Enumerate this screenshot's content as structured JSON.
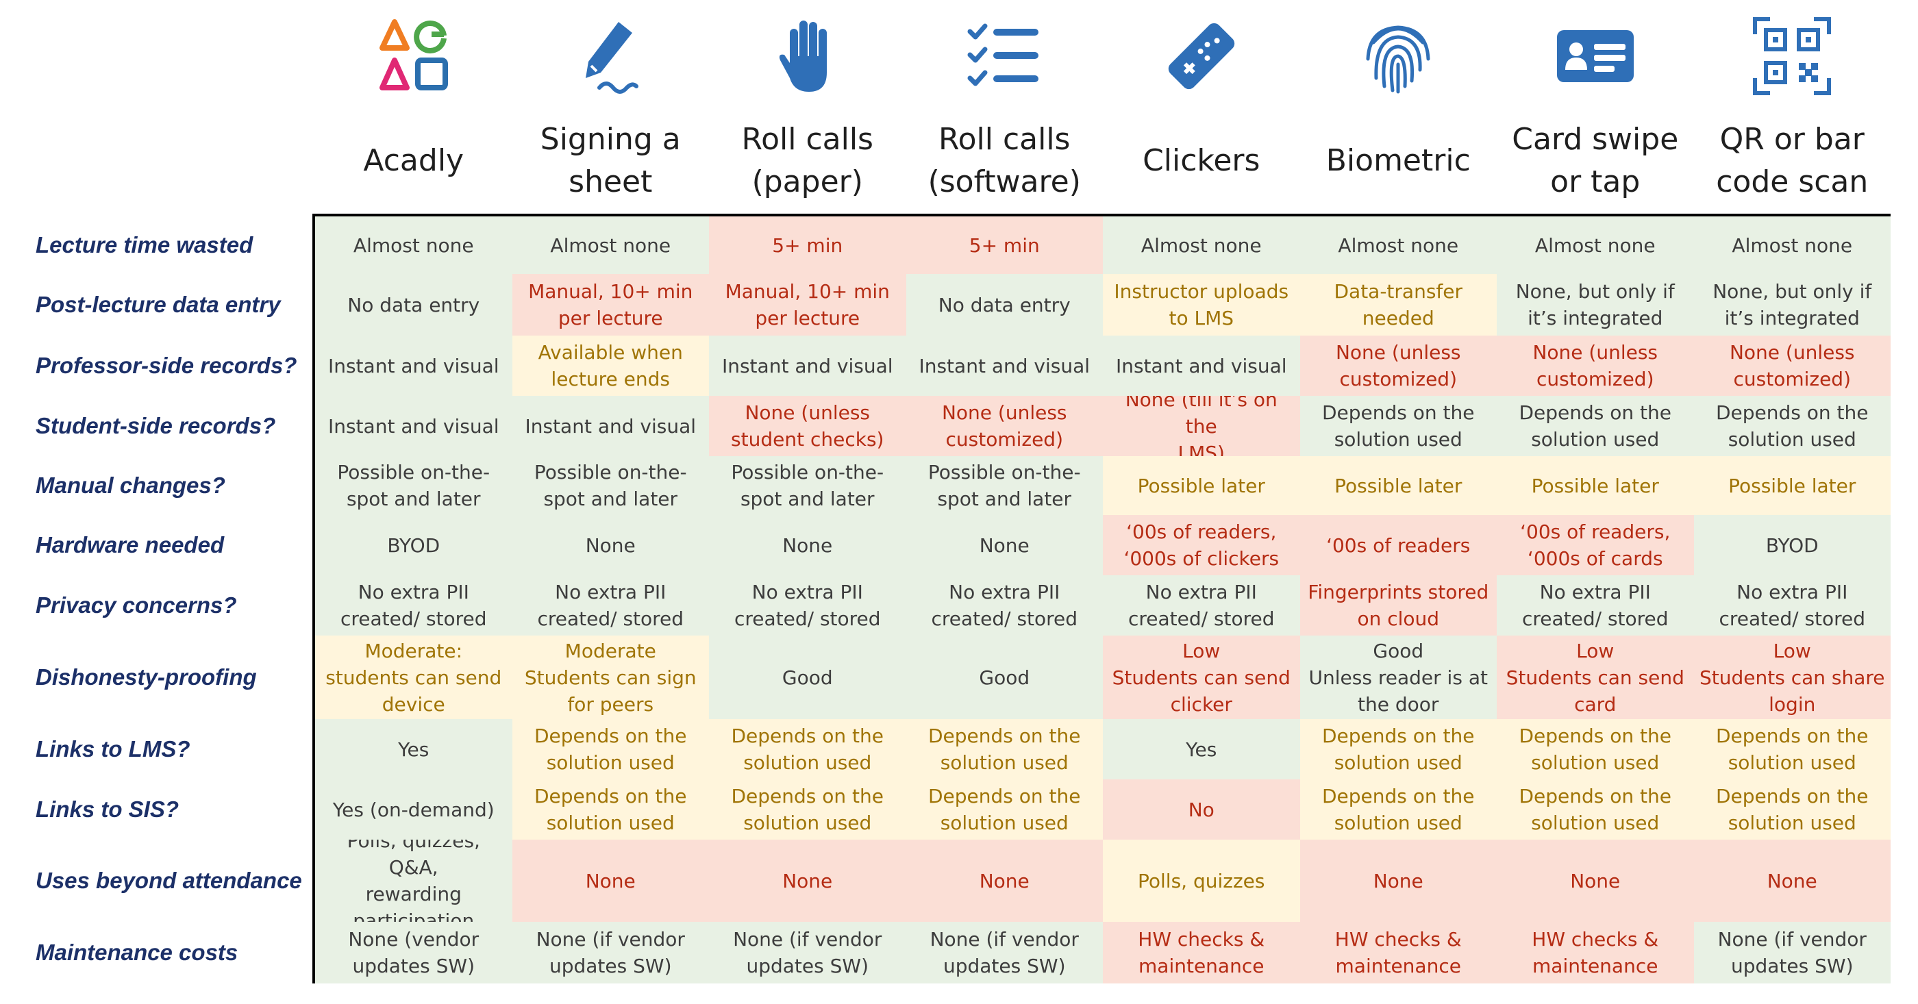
{
  "colors": {
    "green": "#e8f1e4",
    "yellow": "#fff5dc",
    "red": "#fbdfd6",
    "label": "#1c3068",
    "icon_blue": "#2f6fb7"
  },
  "columns": [
    {
      "title": "Acadly",
      "icon": "acadly-logo-icon"
    },
    {
      "title": "Signing a sheet",
      "icon": "pen-icon"
    },
    {
      "title": "Roll calls (paper)",
      "icon": "hand-icon"
    },
    {
      "title": "Roll calls (software)",
      "icon": "checklist-icon"
    },
    {
      "title": "Clickers",
      "icon": "clicker-icon"
    },
    {
      "title": "Biometric",
      "icon": "fingerprint-icon"
    },
    {
      "title": "Card swipe or tap",
      "icon": "id-card-icon"
    },
    {
      "title": "QR or bar code scan",
      "icon": "qr-code-icon"
    }
  ],
  "rows": [
    {
      "label": "Lecture time wasted",
      "cells": [
        {
          "text": "Almost none",
          "status": "green"
        },
        {
          "text": "Almost none",
          "status": "green"
        },
        {
          "text": "5+ min",
          "status": "red"
        },
        {
          "text": "5+ min",
          "status": "red"
        },
        {
          "text": "Almost none",
          "status": "green"
        },
        {
          "text": "Almost none",
          "status": "green"
        },
        {
          "text": "Almost none",
          "status": "green"
        },
        {
          "text": "Almost none",
          "status": "green"
        }
      ]
    },
    {
      "label": "Post-lecture data entry",
      "cells": [
        {
          "text": "No data entry",
          "status": "green"
        },
        {
          "text": "Manual, 10+ min\nper lecture",
          "status": "red"
        },
        {
          "text": "Manual, 10+ min\nper lecture",
          "status": "red"
        },
        {
          "text": "No data entry",
          "status": "green"
        },
        {
          "text": "Instructor uploads\nto LMS",
          "status": "yellow"
        },
        {
          "text": "Data-transfer\nneeded",
          "status": "yellow"
        },
        {
          "text": "None, but only if\nit’s integrated",
          "status": "green"
        },
        {
          "text": "None, but only if\nit’s integrated",
          "status": "green"
        }
      ]
    },
    {
      "label": "Professor-side records?",
      "cells": [
        {
          "text": "Instant and visual",
          "status": "green"
        },
        {
          "text": "Available when\nlecture ends",
          "status": "yellow"
        },
        {
          "text": "Instant and visual",
          "status": "green"
        },
        {
          "text": "Instant and visual",
          "status": "green"
        },
        {
          "text": "Instant and visual",
          "status": "green"
        },
        {
          "text": "None (unless\ncustomized)",
          "status": "red"
        },
        {
          "text": "None (unless\ncustomized)",
          "status": "red"
        },
        {
          "text": "None (unless\ncustomized)",
          "status": "red"
        }
      ]
    },
    {
      "label": "Student-side records?",
      "cells": [
        {
          "text": "Instant and visual",
          "status": "green"
        },
        {
          "text": "Instant and visual",
          "status": "green"
        },
        {
          "text": "None (unless\nstudent checks)",
          "status": "red"
        },
        {
          "text": "None (unless\ncustomized)",
          "status": "red"
        },
        {
          "text": "None (till it’s on the\nLMS)",
          "status": "red"
        },
        {
          "text": "Depends on the\nsolution used",
          "status": "green"
        },
        {
          "text": "Depends on the\nsolution used",
          "status": "green"
        },
        {
          "text": "Depends on the\nsolution used",
          "status": "green"
        }
      ]
    },
    {
      "label": "Manual changes?",
      "cells": [
        {
          "text": "Possible on-the-\nspot and later",
          "status": "green"
        },
        {
          "text": "Possible on-the-\nspot and later",
          "status": "green"
        },
        {
          "text": "Possible on-the-\nspot and later",
          "status": "green"
        },
        {
          "text": "Possible on-the-\nspot and later",
          "status": "green"
        },
        {
          "text": "Possible later",
          "status": "yellow"
        },
        {
          "text": "Possible later",
          "status": "yellow"
        },
        {
          "text": "Possible later",
          "status": "yellow"
        },
        {
          "text": "Possible later",
          "status": "yellow"
        }
      ]
    },
    {
      "label": "Hardware needed",
      "cells": [
        {
          "text": "BYOD",
          "status": "green"
        },
        {
          "text": "None",
          "status": "green"
        },
        {
          "text": "None",
          "status": "green"
        },
        {
          "text": "None",
          "status": "green"
        },
        {
          "text": "‘00s of readers,\n‘000s of clickers",
          "status": "red"
        },
        {
          "text": "‘00s of readers",
          "status": "red"
        },
        {
          "text": "‘00s of readers,\n‘000s of cards",
          "status": "red"
        },
        {
          "text": "BYOD",
          "status": "green"
        }
      ]
    },
    {
      "label": "Privacy concerns?",
      "cells": [
        {
          "text": "No extra PII\ncreated/ stored",
          "status": "green"
        },
        {
          "text": "No extra PII\ncreated/ stored",
          "status": "green"
        },
        {
          "text": "No extra PII\ncreated/ stored",
          "status": "green"
        },
        {
          "text": "No extra PII\ncreated/ stored",
          "status": "green"
        },
        {
          "text": "No extra PII\ncreated/ stored",
          "status": "green"
        },
        {
          "text": "Fingerprints stored\non cloud",
          "status": "red"
        },
        {
          "text": "No extra PII\ncreated/ stored",
          "status": "green"
        },
        {
          "text": "No extra PII\ncreated/ stored",
          "status": "green"
        }
      ]
    },
    {
      "label": "Dishonesty-proofing",
      "cells": [
        {
          "text": "Moderate:\nstudents can send\ndevice",
          "status": "yellow"
        },
        {
          "text": "Moderate\nStudents can sign\nfor peers",
          "status": "yellow"
        },
        {
          "text": "Good",
          "status": "green"
        },
        {
          "text": "Good",
          "status": "green"
        },
        {
          "text": "Low\nStudents can send\nclicker",
          "status": "red"
        },
        {
          "text": "Good\nUnless reader is at\nthe door",
          "status": "green"
        },
        {
          "text": "Low\nStudents can send\ncard",
          "status": "red"
        },
        {
          "text": "Low\nStudents can share\nlogin",
          "status": "red"
        }
      ]
    },
    {
      "label": "Links to LMS?",
      "cells": [
        {
          "text": "Yes",
          "status": "green"
        },
        {
          "text": "Depends on the\nsolution used",
          "status": "yellow"
        },
        {
          "text": "Depends on the\nsolution used",
          "status": "yellow"
        },
        {
          "text": "Depends on the\nsolution used",
          "status": "yellow"
        },
        {
          "text": "Yes",
          "status": "green"
        },
        {
          "text": "Depends on the\nsolution used",
          "status": "yellow"
        },
        {
          "text": "Depends on the\nsolution used",
          "status": "yellow"
        },
        {
          "text": "Depends on the\nsolution used",
          "status": "yellow"
        }
      ]
    },
    {
      "label": "Links to SIS?",
      "cells": [
        {
          "text": "Yes (on-demand)",
          "status": "green"
        },
        {
          "text": "Depends on the\nsolution used",
          "status": "yellow"
        },
        {
          "text": "Depends on the\nsolution used",
          "status": "yellow"
        },
        {
          "text": "Depends on the\nsolution used",
          "status": "yellow"
        },
        {
          "text": "No",
          "status": "red"
        },
        {
          "text": "Depends on the\nsolution used",
          "status": "yellow"
        },
        {
          "text": "Depends on the\nsolution used",
          "status": "yellow"
        },
        {
          "text": "Depends on the\nsolution used",
          "status": "yellow"
        }
      ]
    },
    {
      "label": "Uses beyond attendance",
      "cells": [
        {
          "text": "Polls, quizzes, Q&A,\nrewarding\nparticipation",
          "status": "green"
        },
        {
          "text": "None",
          "status": "red"
        },
        {
          "text": "None",
          "status": "red"
        },
        {
          "text": "None",
          "status": "red"
        },
        {
          "text": "Polls, quizzes",
          "status": "yellow"
        },
        {
          "text": "None",
          "status": "red"
        },
        {
          "text": "None",
          "status": "red"
        },
        {
          "text": "None",
          "status": "red"
        }
      ]
    },
    {
      "label": "Maintenance costs",
      "cells": [
        {
          "text": "None (vendor\nupdates SW)",
          "status": "green"
        },
        {
          "text": "None (if vendor\nupdates SW)",
          "status": "green"
        },
        {
          "text": "None (if vendor\nupdates SW)",
          "status": "green"
        },
        {
          "text": "None (if vendor\nupdates SW)",
          "status": "green"
        },
        {
          "text": "HW checks &\nmaintenance",
          "status": "red"
        },
        {
          "text": "HW checks &\nmaintenance",
          "status": "red"
        },
        {
          "text": "HW checks &\nmaintenance",
          "status": "red"
        },
        {
          "text": "None (if vendor\nupdates SW)",
          "status": "green"
        }
      ]
    }
  ]
}
